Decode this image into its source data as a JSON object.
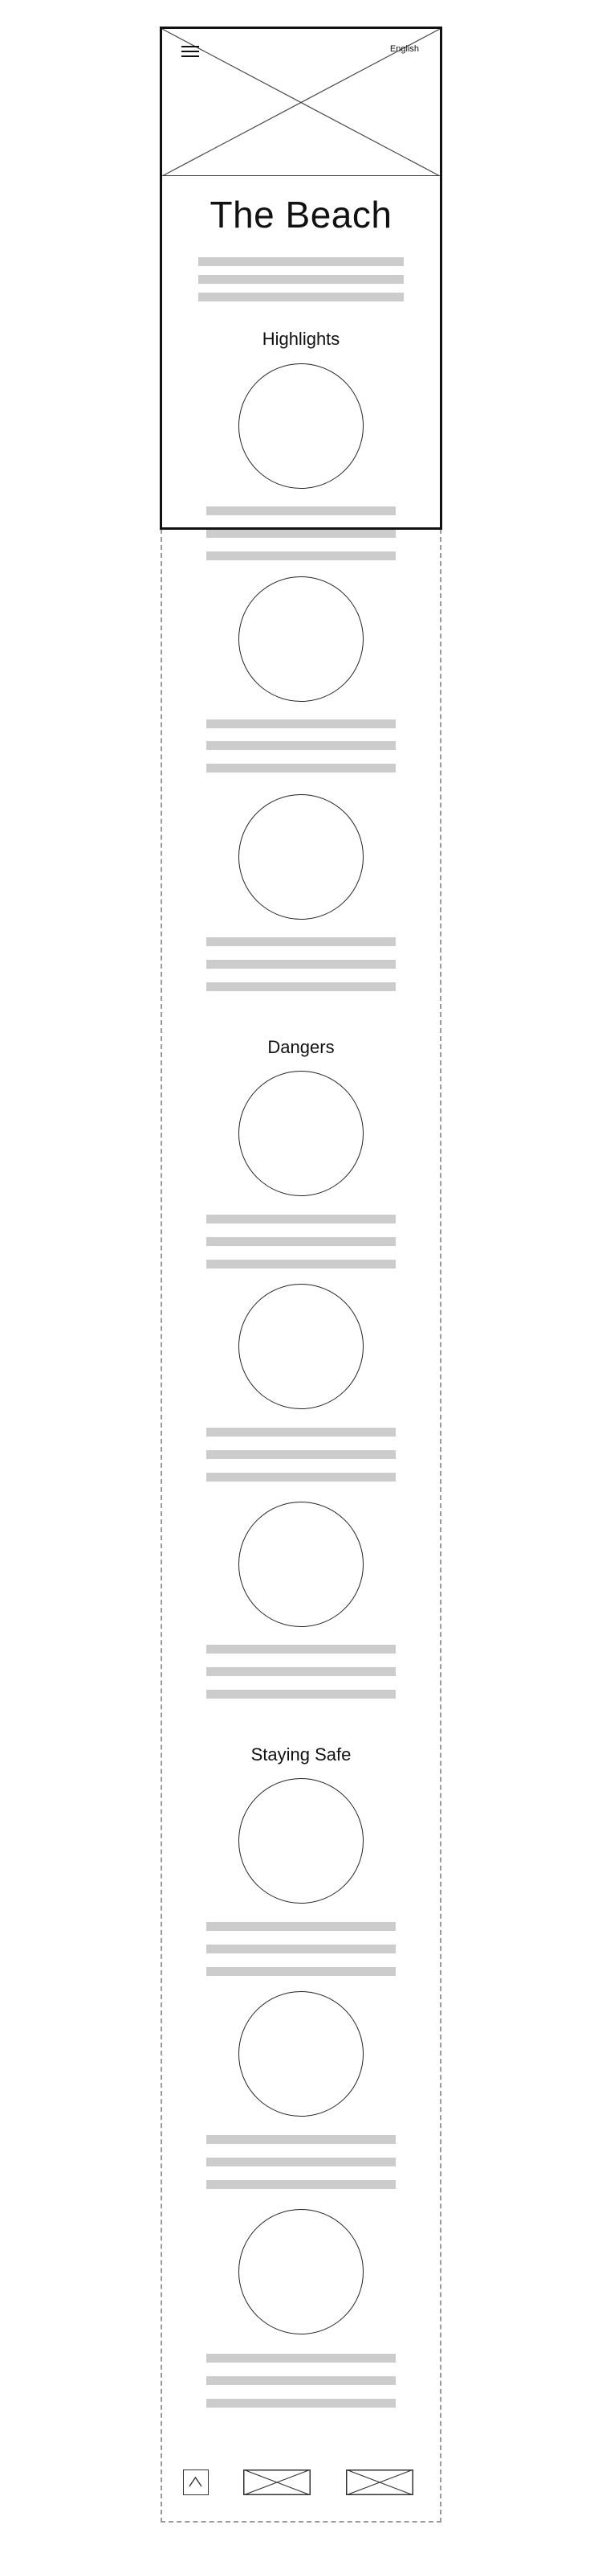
{
  "header": {
    "language_label": "English",
    "menu_icon": "hamburger-icon",
    "hero_image": "image-placeholder"
  },
  "page": {
    "title": "The Beach"
  },
  "sections": [
    {
      "heading": "Highlights"
    },
    {
      "heading": "Dangers"
    },
    {
      "heading": "Staying Safe"
    }
  ],
  "footer": {
    "back_to_top_icon": "chevron-up-icon",
    "images": [
      "image-placeholder",
      "image-placeholder"
    ]
  },
  "colors": {
    "text_placeholder_bar": "#cccccc",
    "frame": "#111111",
    "scroll_outline": "#9a9a9a"
  }
}
